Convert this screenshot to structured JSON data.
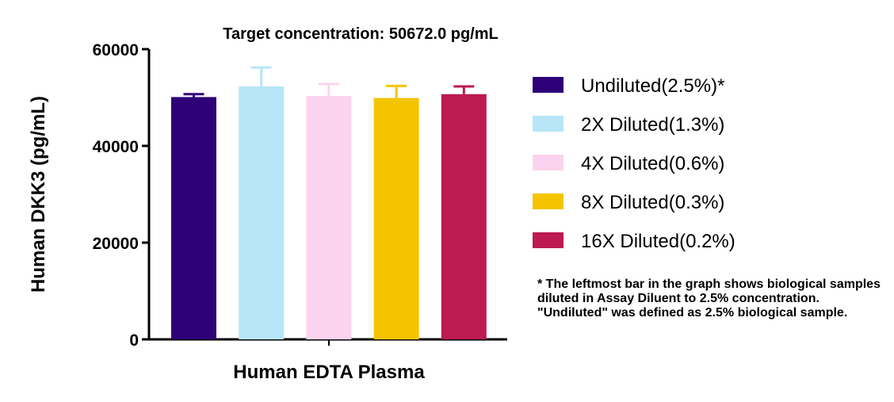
{
  "chart_data": {
    "type": "bar",
    "title": "Target concentration: 50672.0 pg/mL",
    "xlabel": "Human EDTA Plasma",
    "ylabel": "Human DKK3 (pg/mL)",
    "ylim": [
      0,
      60000
    ],
    "yticks": [
      0,
      20000,
      40000,
      60000
    ],
    "ytick_labels": [
      "0",
      "20000",
      "40000",
      "60000"
    ],
    "grid": false,
    "legend_position": "right",
    "series": [
      {
        "name": "Undiluted(2.5%)*",
        "value": 50100,
        "error": 600,
        "color": "#2e0078"
      },
      {
        "name": "2X Diluted(1.3%)",
        "value": 52300,
        "error": 3900,
        "color": "#b6e6f8"
      },
      {
        "name": "4X Diluted(0.6%)",
        "value": 50300,
        "error": 2500,
        "color": "#fbd3ee"
      },
      {
        "name": "8X Diluted(0.3%)",
        "value": 49900,
        "error": 2500,
        "color": "#f5c400"
      },
      {
        "name": "16X Diluted(0.2%)",
        "value": 50700,
        "error": 1600,
        "color": "#bc1a50"
      }
    ]
  },
  "footnote": "* The leftmost bar in the graph shows biological samples diluted in Assay Diluent to 2.5% concentration. \"Undiluted\" was defined as 2.5% biological sample."
}
